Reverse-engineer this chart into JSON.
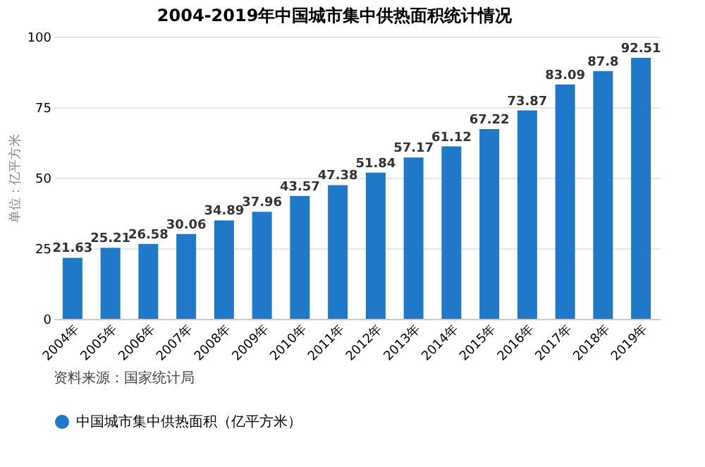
{
  "chart_data": {
    "type": "bar",
    "title": "2004-2019年中国城市集中供热面积统计情况",
    "ylabel": "单位：亿平方米",
    "categories": [
      "2004年",
      "2005年",
      "2006年",
      "2007年",
      "2008年",
      "2009年",
      "2010年",
      "2011年",
      "2012年",
      "2013年",
      "2014年",
      "2015年",
      "2016年",
      "2017年",
      "2018年",
      "2019年"
    ],
    "series": [
      {
        "name": "中国城市集中供热面积（亿平方米）",
        "color": "#1f78c8",
        "values": [
          21.63,
          25.21,
          26.58,
          30.06,
          34.89,
          37.96,
          43.57,
          47.38,
          51.84,
          57.17,
          61.12,
          67.22,
          73.87,
          83.09,
          87.8,
          92.51
        ]
      }
    ],
    "ylim": [
      0,
      100
    ],
    "yticks": [
      0,
      25,
      50,
      75,
      100
    ],
    "grid": "y",
    "legend": "bottom",
    "data_labels": true,
    "annotations": [
      "资料来源：国家统计局"
    ]
  }
}
